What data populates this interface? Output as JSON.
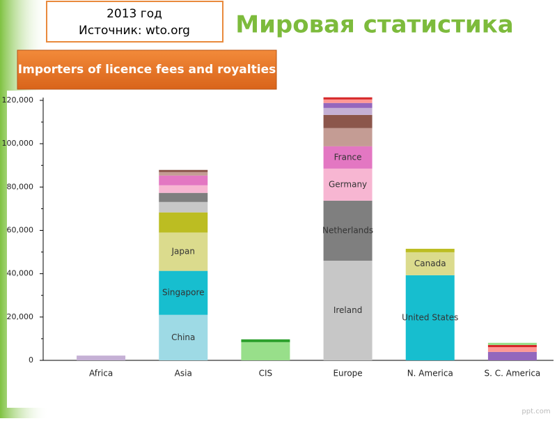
{
  "slide": {
    "title": "Мировая статистика",
    "note_line1": "2013 год",
    "note_line2": "Источник: wto.org",
    "watermark": "ppt.com"
  },
  "chart_data": {
    "type": "stacked-bar",
    "title": "Importers of licence fees and royalties",
    "ylim": [
      0,
      120000
    ],
    "yticks": [
      {
        "value": 0,
        "label": "0"
      },
      {
        "value": 20000,
        "label": "20,000"
      },
      {
        "value": 40000,
        "label": "40,000"
      },
      {
        "value": 60000,
        "label": "60,000"
      },
      {
        "value": 80000,
        "label": "80,000"
      },
      {
        "value": 100000,
        "label": "100,000"
      },
      {
        "value": 120000,
        "label": "120,000"
      }
    ],
    "bars": [
      {
        "category": "Africa",
        "segments": [
          {
            "value": 2200,
            "color": "#c5b0d5"
          }
        ]
      },
      {
        "category": "Asia",
        "segments": [
          {
            "label": "China",
            "value": 21000,
            "color": "#9edae5"
          },
          {
            "label": "Singapore",
            "value": 20300,
            "color": "#17becf"
          },
          {
            "label": "Japan",
            "value": 17700,
            "color": "#dbdb8d"
          },
          {
            "value": 9300,
            "color": "#bcbd22"
          },
          {
            "value": 4800,
            "color": "#c7c7c7"
          },
          {
            "value": 4200,
            "color": "#7f7f7f"
          },
          {
            "value": 3500,
            "color": "#f7b6d2"
          },
          {
            "value": 4500,
            "color": "#e377c2"
          },
          {
            "value": 1600,
            "color": "#c49c94"
          },
          {
            "value": 1000,
            "color": "#8c564b"
          }
        ]
      },
      {
        "category": "CIS",
        "segments": [
          {
            "value": 8400,
            "color": "#98df8a"
          },
          {
            "value": 1300,
            "color": "#2ca02c"
          }
        ]
      },
      {
        "category": "Europe",
        "segments": [
          {
            "label": "Ireland",
            "value": 46000,
            "color": "#c7c7c7"
          },
          {
            "label": "Netherlands",
            "value": 27700,
            "color": "#7f7f7f"
          },
          {
            "label": "Germany",
            "value": 14800,
            "color": "#f7b6d2"
          },
          {
            "label": "France",
            "value": 10300,
            "color": "#e377c2"
          },
          {
            "value": 8400,
            "color": "#c49c94"
          },
          {
            "value": 6100,
            "color": "#8c564b"
          },
          {
            "value": 3200,
            "color": "#c5b0d5"
          },
          {
            "value": 2300,
            "color": "#9467bd"
          },
          {
            "value": 1600,
            "color": "#ff9896"
          },
          {
            "value": 1000,
            "color": "#d62728"
          }
        ]
      },
      {
        "category": "N. America",
        "segments": [
          {
            "label": "United States",
            "value": 39300,
            "color": "#17becf"
          },
          {
            "label": "Canada",
            "value": 10600,
            "color": "#dbdb8d"
          },
          {
            "value": 1600,
            "color": "#bcbd22"
          }
        ]
      },
      {
        "category": "S. C. America",
        "segments": [
          {
            "value": 3900,
            "color": "#9467bd"
          },
          {
            "value": 2200,
            "color": "#ff9896"
          },
          {
            "value": 1000,
            "color": "#d62728"
          },
          {
            "value": 1000,
            "color": "#98df8a"
          }
        ]
      }
    ]
  }
}
